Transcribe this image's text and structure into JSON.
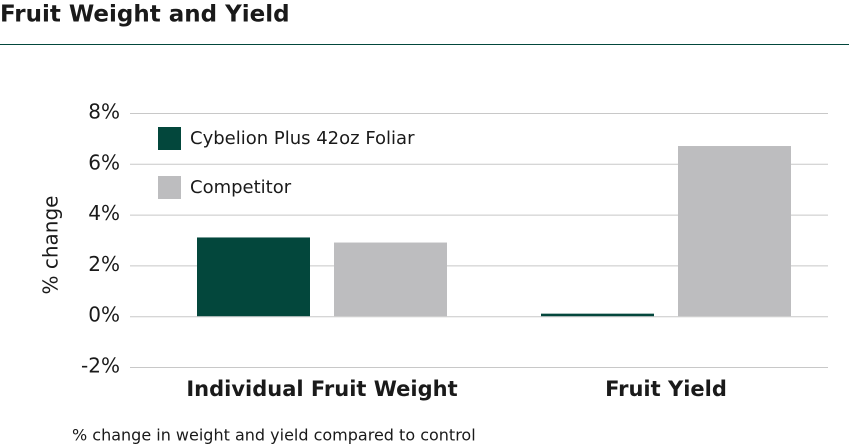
{
  "chart_data": {
    "type": "bar",
    "title": "Fruit Weight and Yield",
    "ylabel": "% change",
    "note": "% change in weight and yield compared to control",
    "categories": [
      "Individual Fruit Weight",
      "Fruit Yield"
    ],
    "series": [
      {
        "name": "Cybelion Plus 42oz Foliar",
        "color": "#03473c",
        "values": [
          3.1,
          0.1
        ]
      },
      {
        "name": "Competitor",
        "color": "#bdbdbf",
        "values": [
          2.9,
          6.7
        ]
      }
    ],
    "ylim": [
      -2,
      8
    ],
    "yticks": [
      {
        "value": -2,
        "label": "-2%"
      },
      {
        "value": 0,
        "label": "0%"
      },
      {
        "value": 2,
        "label": "2%"
      },
      {
        "value": 4,
        "label": "4%"
      },
      {
        "value": 6,
        "label": "6%"
      },
      {
        "value": 8,
        "label": "8%"
      }
    ],
    "grid": true,
    "legend": "top-left"
  }
}
